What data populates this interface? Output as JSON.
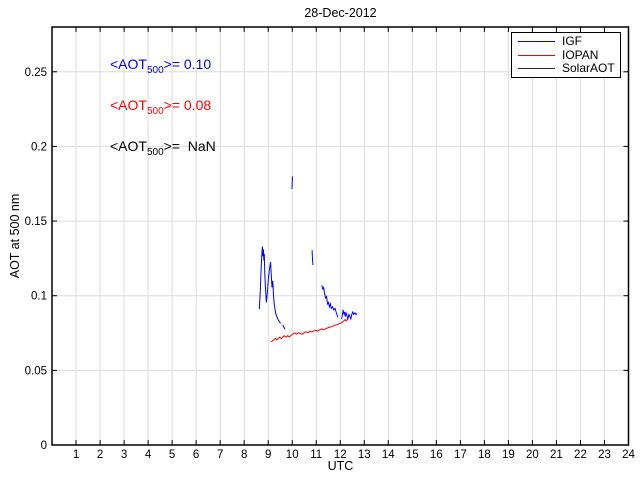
{
  "window": {
    "background": "#ffffff"
  },
  "chart_data": {
    "type": "line",
    "title": "28-Dec-2012",
    "xlabel": "UTC",
    "ylabel": "AOT at 500 nm",
    "xlim": [
      0,
      24
    ],
    "ylim": [
      0,
      0.28
    ],
    "xticks": [
      1,
      2,
      3,
      4,
      5,
      6,
      7,
      8,
      9,
      10,
      11,
      12,
      13,
      14,
      15,
      16,
      17,
      18,
      19,
      20,
      21,
      22,
      23,
      24
    ],
    "ytick_values": [
      0,
      0.05,
      0.1,
      0.15,
      0.2,
      0.25
    ],
    "ytick_labels": [
      "0",
      "0.05",
      "0.1",
      "0.15",
      "0.2",
      "0.25"
    ],
    "grid": true,
    "grid_color": "#dcdcdc",
    "axis_color": "#000000",
    "legend_position": "top-right",
    "series": [
      {
        "name": "IGF",
        "color": "#0000ff",
        "mean_aot_500": "0.10",
        "segments": [
          [
            [
              8.63,
              0.091
            ],
            [
              8.67,
              0.103
            ],
            [
              8.7,
              0.116
            ],
            [
              8.73,
              0.126
            ],
            [
              8.76,
              0.133
            ],
            [
              8.78,
              0.1265
            ],
            [
              8.8,
              0.131
            ],
            [
              8.82,
              0.1235
            ],
            [
              8.84,
              0.128
            ],
            [
              8.86,
              0.1145
            ],
            [
              8.89,
              0.105
            ],
            [
              8.92,
              0.0955
            ],
            [
              8.95,
              0.0995
            ],
            [
              8.98,
              0.105
            ],
            [
              9.01,
              0.1115
            ],
            [
              9.05,
              0.1175
            ],
            [
              9.1,
              0.1225
            ],
            [
              9.13,
              0.1135
            ],
            [
              9.16,
              0.1055
            ],
            [
              9.19,
              0.11
            ],
            [
              9.22,
              0.1
            ],
            [
              9.26,
              0.0935
            ],
            [
              9.31,
              0.0885
            ],
            [
              9.37,
              0.0855
            ],
            [
              9.43,
              0.0835
            ],
            [
              9.49,
              0.082
            ],
            [
              9.53,
              0.0815
            ]
          ],
          [
            [
              9.6,
              0.0805
            ],
            [
              9.65,
              0.079
            ],
            [
              9.7,
              0.0775
            ]
          ],
          [
            [
              9.99,
              0.1715
            ],
            [
              10.0,
              0.175
            ],
            [
              10.01,
              0.18
            ]
          ],
          [
            [
              10.83,
              0.1305
            ],
            [
              10.84,
              0.1255
            ],
            [
              10.86,
              0.1205
            ]
          ],
          [
            [
              11.23,
              0.107
            ],
            [
              11.27,
              0.1045
            ],
            [
              11.31,
              0.1055
            ],
            [
              11.35,
              0.1015
            ],
            [
              11.39,
              0.0985
            ],
            [
              11.43,
              0.0995
            ],
            [
              11.47,
              0.0945
            ],
            [
              11.51,
              0.0955
            ],
            [
              11.55,
              0.0925
            ],
            [
              11.59,
              0.0945
            ],
            [
              11.63,
              0.0915
            ],
            [
              11.68,
              0.0925
            ],
            [
              11.73,
              0.0905
            ],
            [
              11.78,
              0.0915
            ],
            [
              11.82,
              0.0895
            ],
            [
              11.86,
              0.0875
            ],
            [
              11.9,
              0.0855
            ]
          ],
          [
            [
              12.06,
              0.0845
            ],
            [
              12.09,
              0.0875
            ],
            [
              12.12,
              0.0905
            ],
            [
              12.15,
              0.0875
            ],
            [
              12.18,
              0.089
            ],
            [
              12.21,
              0.086
            ],
            [
              12.24,
              0.0885
            ],
            [
              12.28,
              0.0865
            ],
            [
              12.32,
              0.0845
            ],
            [
              12.36,
              0.0875
            ],
            [
              12.4,
              0.086
            ],
            [
              12.44,
              0.0845
            ],
            [
              12.48,
              0.0875
            ],
            [
              12.52,
              0.089
            ],
            [
              12.56,
              0.0875
            ],
            [
              12.61,
              0.0885
            ],
            [
              12.65,
              0.0875
            ],
            [
              12.7,
              0.088
            ]
          ]
        ]
      },
      {
        "name": "IOPAN",
        "color": "#ff0000",
        "mean_aot_500": "0.08",
        "segments": [
          [
            [
              9.12,
              0.069
            ],
            [
              9.18,
              0.0698
            ],
            [
              9.24,
              0.0706
            ],
            [
              9.3,
              0.0714
            ],
            [
              9.36,
              0.0704
            ],
            [
              9.42,
              0.0714
            ],
            [
              9.48,
              0.0722
            ],
            [
              9.54,
              0.0712
            ],
            [
              9.6,
              0.0722
            ],
            [
              9.67,
              0.0732
            ],
            [
              9.74,
              0.0722
            ],
            [
              9.81,
              0.0732
            ],
            [
              9.88,
              0.0724
            ],
            [
              9.95,
              0.0734
            ],
            [
              10.02,
              0.0742
            ],
            [
              10.1,
              0.075
            ],
            [
              10.18,
              0.0742
            ],
            [
              10.26,
              0.0752
            ],
            [
              10.34,
              0.0746
            ],
            [
              10.42,
              0.0742
            ],
            [
              10.5,
              0.0752
            ],
            [
              10.58,
              0.0758
            ],
            [
              10.66,
              0.0752
            ],
            [
              10.74,
              0.0762
            ],
            [
              10.82,
              0.0756
            ],
            [
              10.9,
              0.0764
            ],
            [
              10.98,
              0.0768
            ],
            [
              11.06,
              0.0762
            ],
            [
              11.14,
              0.0772
            ],
            [
              11.22,
              0.0778
            ],
            [
              11.3,
              0.0772
            ],
            [
              11.38,
              0.0778
            ],
            [
              11.46,
              0.0784
            ],
            [
              11.54,
              0.0788
            ],
            [
              11.62,
              0.0792
            ],
            [
              11.7,
              0.0796
            ],
            [
              11.78,
              0.0802
            ],
            [
              11.86,
              0.0806
            ],
            [
              11.94,
              0.0812
            ],
            [
              12.02,
              0.0816
            ],
            [
              12.08,
              0.0822
            ],
            [
              12.14,
              0.083
            ],
            [
              12.2,
              0.084
            ],
            [
              12.25,
              0.0832
            ],
            [
              12.3,
              0.0844
            ],
            [
              12.34,
              0.085
            ]
          ]
        ]
      },
      {
        "name": "SolarAOT",
        "color": "#2b2b2b",
        "mean_aot_500": "NaN",
        "segments": []
      }
    ],
    "annotations": [
      {
        "pre": "<AOT",
        "sub": "500",
        "post": ">= 0.10",
        "color": "#0000ff"
      },
      {
        "pre": "<AOT",
        "sub": "500",
        "post": ">= 0.08",
        "color": "#ff0000"
      },
      {
        "pre": "<AOT",
        "sub": "500",
        "post": ">=  NaN",
        "color": "#000000"
      }
    ]
  }
}
